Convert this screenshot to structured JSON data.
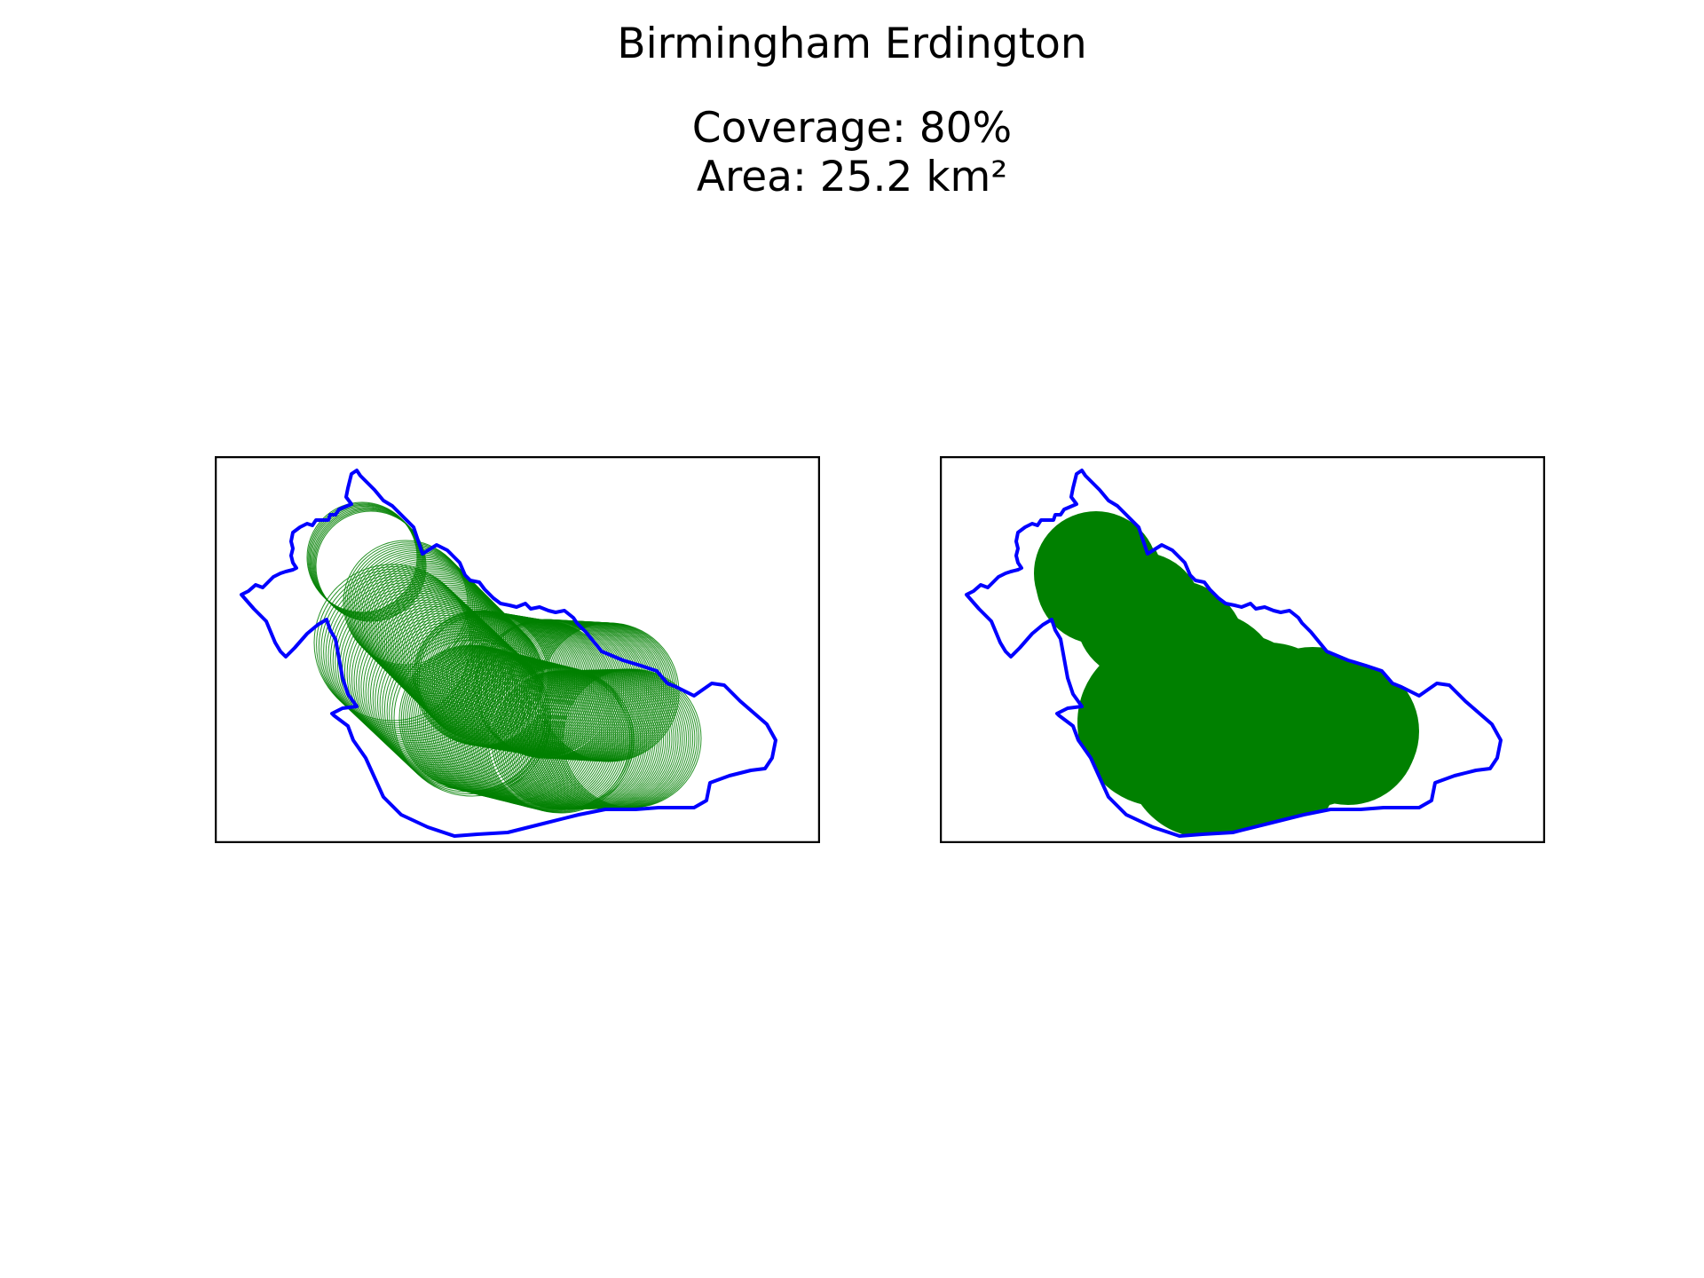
{
  "figure": {
    "title": "Birmingham Erdington",
    "coverage_line": "Coverage: 80%",
    "area_line": "Area: 25.2 km²"
  },
  "style": {
    "boundary_color": "#0000ff",
    "coverage_color": "#008000",
    "frame_color": "#000000",
    "background": "#ffffff"
  },
  "panels": [
    {
      "id": "left",
      "rendering": "circle-outlines"
    },
    {
      "id": "right",
      "rendering": "filled-union"
    }
  ]
}
